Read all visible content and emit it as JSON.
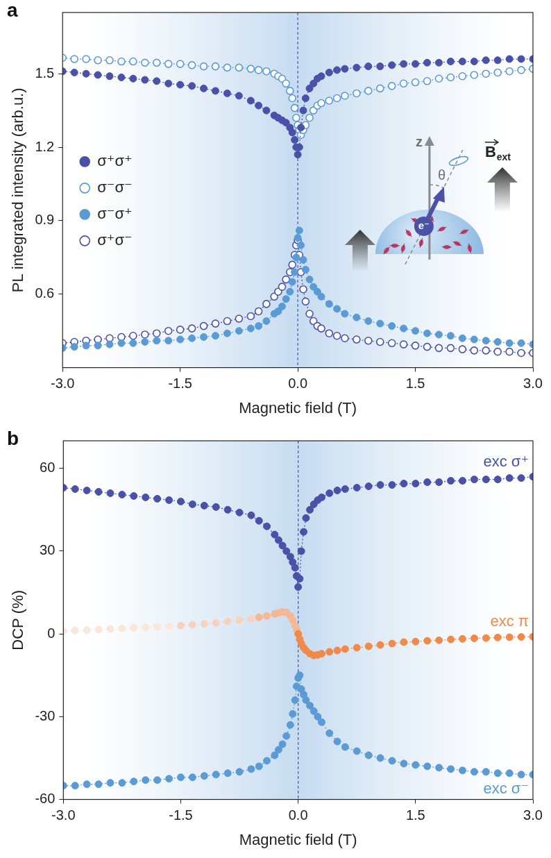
{
  "chart_data": [
    {
      "panel": "a",
      "type": "line",
      "x_label": "Magnetic field (T)",
      "y_label": "PL integrated intensity (arb.u.)",
      "x": [
        -3.0,
        -2.85,
        -2.7,
        -2.55,
        -2.4,
        -2.25,
        -2.1,
        -1.95,
        -1.8,
        -1.65,
        -1.5,
        -1.35,
        -1.2,
        -1.05,
        -0.9,
        -0.75,
        -0.6,
        -0.5,
        -0.4,
        -0.3,
        -0.25,
        -0.2,
        -0.15,
        -0.1,
        -0.07,
        -0.04,
        -0.02,
        0,
        0.02,
        0.04,
        0.07,
        0.1,
        0.15,
        0.2,
        0.25,
        0.3,
        0.4,
        0.5,
        0.6,
        0.75,
        0.9,
        1.05,
        1.2,
        1.35,
        1.5,
        1.65,
        1.8,
        1.95,
        2.1,
        2.25,
        2.4,
        2.55,
        2.7,
        2.85,
        3.0
      ],
      "xlim": [
        -3,
        3
      ],
      "xticks": [
        {
          "value": -3,
          "label": "-3.0"
        },
        -1.5,
        {
          "value": 0,
          "label": "0.0"
        },
        1.5,
        {
          "value": 3,
          "label": "3.0"
        }
      ],
      "ylim": [
        0.3,
        1.75
      ],
      "yticks": [
        0.6,
        0.9,
        1.2,
        1.5
      ],
      "grid": false,
      "legend": "left",
      "series": [
        {
          "name": "σ⁺σ⁺",
          "color": "#4a51a8",
          "marker": "filled_circle",
          "line_style": "dotted",
          "values": [
            1.51,
            1.505,
            1.5,
            1.495,
            1.49,
            1.485,
            1.48,
            1.475,
            1.47,
            1.46,
            1.455,
            1.45,
            1.44,
            1.43,
            1.42,
            1.41,
            1.39,
            1.37,
            1.35,
            1.33,
            1.32,
            1.31,
            1.3,
            1.28,
            1.26,
            1.23,
            1.2,
            1.17,
            1.2,
            1.28,
            1.35,
            1.4,
            1.44,
            1.46,
            1.48,
            1.49,
            1.505,
            1.515,
            1.52,
            1.525,
            1.53,
            1.53,
            1.535,
            1.54,
            1.54,
            1.545,
            1.545,
            1.55,
            1.55,
            1.55,
            1.555,
            1.555,
            1.56,
            1.56,
            1.56
          ]
        },
        {
          "name": "σ⁻σ⁻",
          "color": "#5b9bd5",
          "marker": "open_circle",
          "line_style": "dotted",
          "values": [
            1.565,
            1.56,
            1.56,
            1.555,
            1.555,
            1.55,
            1.55,
            1.545,
            1.545,
            1.54,
            1.54,
            1.535,
            1.53,
            1.53,
            1.525,
            1.525,
            1.52,
            1.515,
            1.51,
            1.5,
            1.49,
            1.48,
            1.46,
            1.43,
            1.4,
            1.36,
            1.32,
            1.29,
            1.27,
            1.25,
            1.27,
            1.29,
            1.32,
            1.35,
            1.37,
            1.38,
            1.39,
            1.4,
            1.41,
            1.42,
            1.43,
            1.44,
            1.45,
            1.46,
            1.465,
            1.47,
            1.48,
            1.485,
            1.49,
            1.495,
            1.5,
            1.505,
            1.51,
            1.515,
            1.52
          ]
        },
        {
          "name": "σ⁻σ⁺",
          "color": "#5b9bd5",
          "marker": "filled_circle",
          "line_style": "dotted",
          "values": [
            0.38,
            0.385,
            0.39,
            0.39,
            0.395,
            0.4,
            0.4,
            0.405,
            0.41,
            0.41,
            0.415,
            0.42,
            0.425,
            0.43,
            0.44,
            0.45,
            0.46,
            0.47,
            0.49,
            0.52,
            0.53,
            0.55,
            0.58,
            0.61,
            0.65,
            0.69,
            0.75,
            0.83,
            0.86,
            0.8,
            0.74,
            0.7,
            0.66,
            0.63,
            0.61,
            0.59,
            0.56,
            0.54,
            0.52,
            0.505,
            0.49,
            0.48,
            0.47,
            0.46,
            0.45,
            0.44,
            0.435,
            0.43,
            0.42,
            0.415,
            0.41,
            0.405,
            0.4,
            0.4,
            0.395
          ]
        },
        {
          "name": "σ⁺σ⁻",
          "color": "#4a51a8",
          "marker": "open_circle",
          "line_style": "dotted",
          "values": [
            0.4,
            0.405,
            0.41,
            0.415,
            0.42,
            0.425,
            0.43,
            0.435,
            0.44,
            0.45,
            0.455,
            0.46,
            0.47,
            0.48,
            0.49,
            0.5,
            0.51,
            0.53,
            0.56,
            0.59,
            0.61,
            0.63,
            0.66,
            0.69,
            0.72,
            0.76,
            0.8,
            0.82,
            0.76,
            0.69,
            0.62,
            0.57,
            0.52,
            0.49,
            0.47,
            0.46,
            0.44,
            0.43,
            0.42,
            0.415,
            0.41,
            0.405,
            0.4,
            0.395,
            0.39,
            0.385,
            0.38,
            0.38,
            0.375,
            0.37,
            0.37,
            0.365,
            0.365,
            0.36,
            0.36
          ]
        }
      ],
      "inset": {
        "axis_label": "z",
        "angle_label": "θ",
        "particle_label": "e⁻",
        "field_label": "B",
        "field_subscript": "ext"
      }
    },
    {
      "panel": "b",
      "type": "line",
      "x_label": "Magnetic field (T)",
      "y_label": "DCP (%)",
      "x": [
        -3.0,
        -2.85,
        -2.7,
        -2.55,
        -2.4,
        -2.25,
        -2.1,
        -1.95,
        -1.8,
        -1.65,
        -1.5,
        -1.35,
        -1.2,
        -1.05,
        -0.9,
        -0.75,
        -0.6,
        -0.5,
        -0.4,
        -0.3,
        -0.25,
        -0.2,
        -0.15,
        -0.1,
        -0.07,
        -0.04,
        -0.02,
        0,
        0.02,
        0.04,
        0.07,
        0.1,
        0.15,
        0.2,
        0.25,
        0.3,
        0.4,
        0.5,
        0.6,
        0.75,
        0.9,
        1.05,
        1.2,
        1.35,
        1.5,
        1.65,
        1.8,
        1.95,
        2.1,
        2.25,
        2.4,
        2.55,
        2.7,
        2.85,
        3.0
      ],
      "xlim": [
        -3,
        3
      ],
      "xticks": [
        {
          "value": -3,
          "label": "-3.0"
        },
        -1.5,
        {
          "value": 0,
          "label": "0.0"
        },
        1.5,
        {
          "value": 3,
          "label": "3.0"
        }
      ],
      "ylim": [
        -60,
        70
      ],
      "yticks": [
        -60,
        -30,
        0,
        30,
        60
      ],
      "grid": false,
      "series": [
        {
          "name": "exc σ⁺",
          "color": "#4a51a8",
          "marker": "filled_circle",
          "line_style": "dotted",
          "values": [
            53,
            52.5,
            52,
            51.5,
            51,
            50.5,
            50,
            49.5,
            49,
            48.5,
            48,
            47,
            46.5,
            46,
            45,
            44,
            43,
            41,
            39,
            36,
            34,
            32,
            30,
            28,
            26,
            24,
            21,
            17,
            20,
            30,
            37,
            42,
            45,
            47,
            48.5,
            49.5,
            51,
            52,
            52.5,
            53,
            53.5,
            54,
            54,
            54.5,
            54.5,
            55,
            55,
            55.5,
            55.5,
            56,
            56,
            56,
            56.5,
            56.5,
            57
          ]
        },
        {
          "name": "exc π",
          "marker": "filled_circle",
          "line_style": "dotted",
          "colors": [
            "#fbe6da",
            "#fbe6da",
            "#fbe6da",
            "#fbe6da",
            "#fbe6da",
            "#fbe6da",
            "#fbe6da",
            "#fbe6da",
            "#fbe6da",
            "#fbe6da",
            "#f8d2bc",
            "#f8d2bc",
            "#f8d2bc",
            "#f8d2bc",
            "#f8d2bc",
            "#f8d2bc",
            "#f8d2bc",
            "#f4b994",
            "#f4b994",
            "#f4b994",
            "#f4b994",
            "#f4b994",
            "#f4b994",
            "#f4b994",
            "#f4b994",
            "#f4b994",
            "#f4b994",
            "#f08a4b",
            "#f08a4b",
            "#f08a4b",
            "#f08a4b",
            "#f08a4b",
            "#f08a4b",
            "#f08a4b",
            "#f08a4b",
            "#f08a4b",
            "#f08a4b",
            "#f08a4b",
            "#f08a4b",
            "#f08a4b",
            "#f08a4b",
            "#f08a4b",
            "#f08a4b",
            "#f08a4b",
            "#f08a4b",
            "#f08a4b",
            "#f08a4b",
            "#f08a4b",
            "#f08a4b",
            "#f08a4b",
            "#f08a4b",
            "#f08a4b",
            "#f08a4b",
            "#f08a4b",
            "#f08a4b"
          ],
          "values": [
            1,
            1.2,
            1.4,
            1.6,
            1.8,
            2,
            2.2,
            2.4,
            2.6,
            2.8,
            3,
            3.3,
            3.6,
            4,
            4.5,
            5,
            5.5,
            6,
            6.5,
            7.2,
            7.6,
            8,
            7.8,
            6.5,
            5,
            3,
            1.5,
            0,
            -2,
            -3.5,
            -5,
            -6,
            -7.2,
            -7.8,
            -7.6,
            -7.2,
            -6.5,
            -6,
            -5.5,
            -5,
            -4.5,
            -4,
            -3.5,
            -3,
            -2.8,
            -2.5,
            -2.3,
            -2,
            -1.8,
            -1.6,
            -1.5,
            -1.3,
            -1.2,
            -1.1,
            -1
          ]
        },
        {
          "name": "exc σ⁻",
          "color": "#5b9bd5",
          "marker": "filled_circle",
          "line_style": "dotted",
          "values": [
            -55,
            -55,
            -54.5,
            -54.5,
            -54,
            -54,
            -53.5,
            -53,
            -53,
            -52.5,
            -52,
            -52,
            -51.5,
            -51,
            -50.5,
            -50,
            -49,
            -48,
            -46,
            -44,
            -42,
            -40,
            -37,
            -33,
            -29,
            -24,
            -19,
            -16,
            -15,
            -20,
            -22,
            -24,
            -26,
            -28,
            -30,
            -32,
            -36,
            -39,
            -41,
            -42.5,
            -44,
            -45,
            -46,
            -47,
            -47.5,
            -48,
            -48.5,
            -49,
            -49.5,
            -50,
            -50,
            -50.5,
            -50.5,
            -51,
            -51
          ]
        }
      ]
    }
  ]
}
